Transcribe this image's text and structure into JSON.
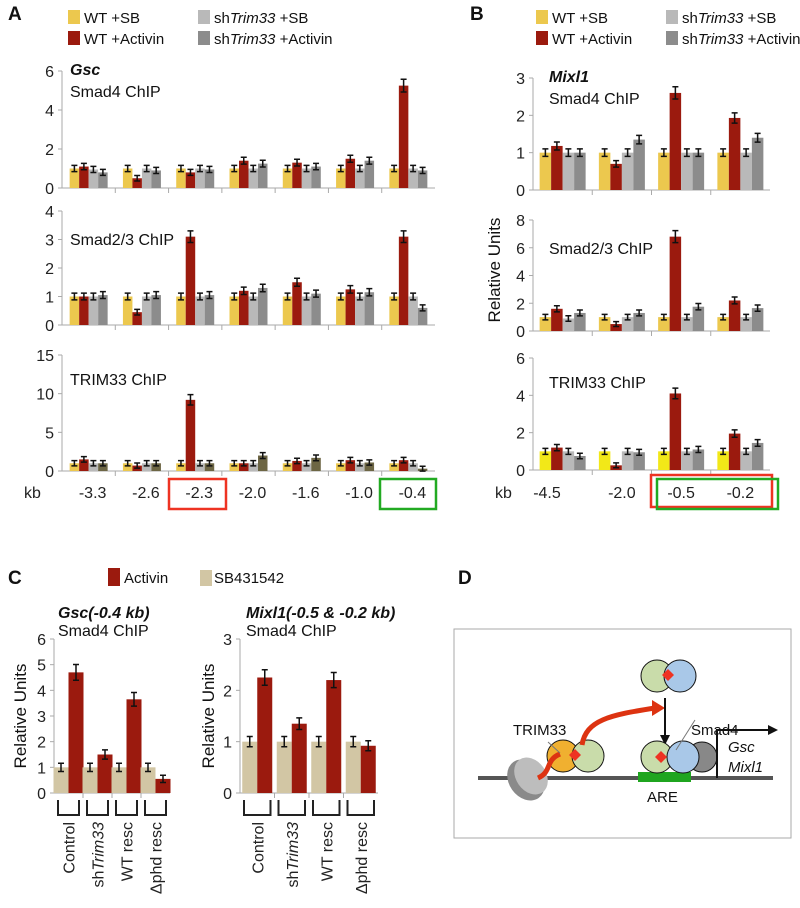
{
  "panels": {
    "a": "A",
    "b": "B",
    "c": "C",
    "d": "D"
  },
  "legend_ab": [
    "WT +SB",
    "WT +Activin",
    "sh",
    "Trim33",
    " +SB",
    " +Activin"
  ],
  "legend_c": [
    "Activin",
    "SB431542"
  ],
  "colors": {
    "wt_sb": "#ecc84e",
    "wt_act": "#9b1a0e",
    "sh_sb": "#b9b9b9",
    "sh_act": "#8c8c8c",
    "sh_act_trim_a": "#6d6644",
    "wt_sb_trim_b": "#f2e818",
    "sb431542": "#d2c6a4",
    "box_red": "#ee3322",
    "box_green": "#22aa22"
  },
  "chart_data": [
    {
      "id": "A1",
      "type": "bar",
      "gene": "Gsc",
      "title": "Smad4 ChIP",
      "ylabel": "Relative Units",
      "ylim": [
        0,
        6
      ],
      "yticks": [
        0,
        2,
        4,
        6
      ],
      "categories": [
        "-3.3",
        "-2.6",
        "-2.3",
        "-2.0",
        "-1.6",
        "-1.0",
        "-0.4"
      ],
      "series": [
        {
          "name": "WT +SB",
          "values": [
            1,
            1,
            1,
            1,
            1,
            1,
            1
          ]
        },
        {
          "name": "WT +Activin",
          "values": [
            1.1,
            0.5,
            0.8,
            1.4,
            1.3,
            1.5,
            5.25
          ]
        },
        {
          "name": "shTrim33 +SB",
          "values": [
            0.95,
            1,
            1,
            1,
            1,
            1,
            1
          ]
        },
        {
          "name": "shTrim33 +Activin",
          "values": [
            0.8,
            0.9,
            0.95,
            1.25,
            1.1,
            1.4,
            0.9
          ]
        }
      ]
    },
    {
      "id": "A2",
      "type": "bar",
      "title": "Smad2/3 ChIP",
      "ylim": [
        0,
        4
      ],
      "yticks": [
        0,
        1,
        2,
        3,
        4
      ],
      "categories": [
        "-3.3",
        "-2.6",
        "-2.3",
        "-2.0",
        "-1.6",
        "-1.0",
        "-0.4"
      ],
      "series": [
        {
          "name": "WT +SB",
          "values": [
            1,
            1,
            1,
            1,
            1,
            1,
            1
          ]
        },
        {
          "name": "WT +Activin",
          "values": [
            1,
            0.45,
            3.1,
            1.2,
            1.5,
            1.25,
            3.1
          ]
        },
        {
          "name": "shTrim33 +SB",
          "values": [
            1,
            1,
            1,
            1,
            1,
            1,
            1
          ]
        },
        {
          "name": "shTrim33 +Activin",
          "values": [
            1.05,
            1.05,
            1.05,
            1.3,
            1.1,
            1.15,
            0.6
          ]
        }
      ]
    },
    {
      "id": "A3",
      "type": "bar",
      "title": "TRIM33 ChIP",
      "ylim": [
        0,
        15
      ],
      "yticks": [
        0,
        5,
        10,
        15
      ],
      "xlabel": "kb",
      "categories": [
        "-3.3",
        "-2.6",
        "-2.3",
        "-2.0",
        "-1.6",
        "-1.0",
        "-0.4"
      ],
      "series": [
        {
          "name": "WT +SB",
          "values": [
            1,
            1,
            1,
            1,
            1,
            1,
            1
          ]
        },
        {
          "name": "WT +Activin",
          "values": [
            1.5,
            0.7,
            9.2,
            1,
            1.3,
            1.4,
            1.4
          ]
        },
        {
          "name": "shTrim33 +SB",
          "values": [
            1,
            1,
            1,
            1,
            1,
            1,
            1
          ]
        },
        {
          "name": "shTrim33 +Activin",
          "values": [
            1,
            1,
            1,
            2,
            1.7,
            1.1,
            0.3
          ]
        }
      ]
    },
    {
      "id": "B1",
      "type": "bar",
      "gene": "Mixl1",
      "title": "Smad4 ChIP",
      "ylim": [
        0,
        3
      ],
      "yticks": [
        0,
        1,
        2,
        3
      ],
      "categories": [
        "-4.5",
        "-2.0",
        "-0.5",
        "-0.2"
      ],
      "series": [
        {
          "name": "WT +SB",
          "values": [
            1,
            1,
            1,
            1
          ]
        },
        {
          "name": "WT +Activin",
          "values": [
            1.18,
            0.7,
            2.6,
            1.93
          ]
        },
        {
          "name": "shTrim33 +SB",
          "values": [
            1,
            1,
            1,
            1
          ]
        },
        {
          "name": "shTrim33 +Activin",
          "values": [
            1,
            1.35,
            1,
            1.4
          ]
        }
      ]
    },
    {
      "id": "B2",
      "type": "bar",
      "title": "Smad2/3 ChIP",
      "ylabel": "Relative Units",
      "ylim": [
        0,
        8
      ],
      "yticks": [
        0,
        2,
        4,
        6,
        8
      ],
      "categories": [
        "-4.5",
        "-2.0",
        "-0.5",
        "-0.2"
      ],
      "series": [
        {
          "name": "WT +SB",
          "values": [
            1,
            1,
            1,
            1
          ]
        },
        {
          "name": "WT +Activin",
          "values": [
            1.6,
            0.5,
            6.8,
            2.2
          ]
        },
        {
          "name": "shTrim33 +SB",
          "values": [
            0.9,
            1,
            1,
            1
          ]
        },
        {
          "name": "shTrim33 +Activin",
          "values": [
            1.3,
            1.3,
            1.75,
            1.65
          ]
        }
      ]
    },
    {
      "id": "B3",
      "type": "bar",
      "title": "TRIM33 ChIP",
      "ylim": [
        0,
        6
      ],
      "yticks": [
        0,
        2,
        4,
        6
      ],
      "xlabel": "kb",
      "categories": [
        "-4.5",
        "-2.0",
        "-0.5",
        "-0.2"
      ],
      "series": [
        {
          "name": "WT +SB",
          "values": [
            1,
            1,
            1,
            1
          ]
        },
        {
          "name": "WT +Activin",
          "values": [
            1.2,
            0.25,
            4.1,
            1.95
          ]
        },
        {
          "name": "shTrim33 +SB",
          "values": [
            1,
            1,
            1,
            1
          ]
        },
        {
          "name": "shTrim33 +Activin",
          "values": [
            0.75,
            0.95,
            1.1,
            1.45
          ]
        }
      ]
    },
    {
      "id": "C1",
      "type": "bar",
      "gene": "Gsc(-0.4 kb)",
      "title": "Smad4 ChIP",
      "ylabel": "Relative Units",
      "ylim": [
        0,
        6
      ],
      "yticks": [
        0,
        1,
        2,
        3,
        4,
        5,
        6
      ],
      "categories": [
        "Control",
        "shTrim33",
        "WT resc",
        "Δphd resc"
      ],
      "series": [
        {
          "name": "SB431542",
          "values": [
            1,
            1,
            1,
            1
          ]
        },
        {
          "name": "Activin",
          "values": [
            4.7,
            1.5,
            3.65,
            0.55
          ]
        }
      ]
    },
    {
      "id": "C2",
      "type": "bar",
      "gene": "Mixl1(-0.5 & -0.2 kb)",
      "title": "Smad4 ChIP",
      "ylabel": "Relative Units",
      "ylim": [
        0,
        3
      ],
      "yticks": [
        0,
        1,
        2,
        3
      ],
      "categories": [
        "Control",
        "shTrim33",
        "WT resc",
        "Δphd resc"
      ],
      "series": [
        {
          "name": "SB431542",
          "values": [
            1,
            1,
            1,
            1
          ]
        },
        {
          "name": "Activin",
          "values": [
            2.25,
            1.35,
            2.2,
            0.92
          ]
        }
      ]
    }
  ],
  "diagram": {
    "trim33": "TRIM33",
    "smad4": "Smad4",
    "are": "ARE",
    "gene1": "Gsc",
    "gene2": "Mixl1"
  }
}
